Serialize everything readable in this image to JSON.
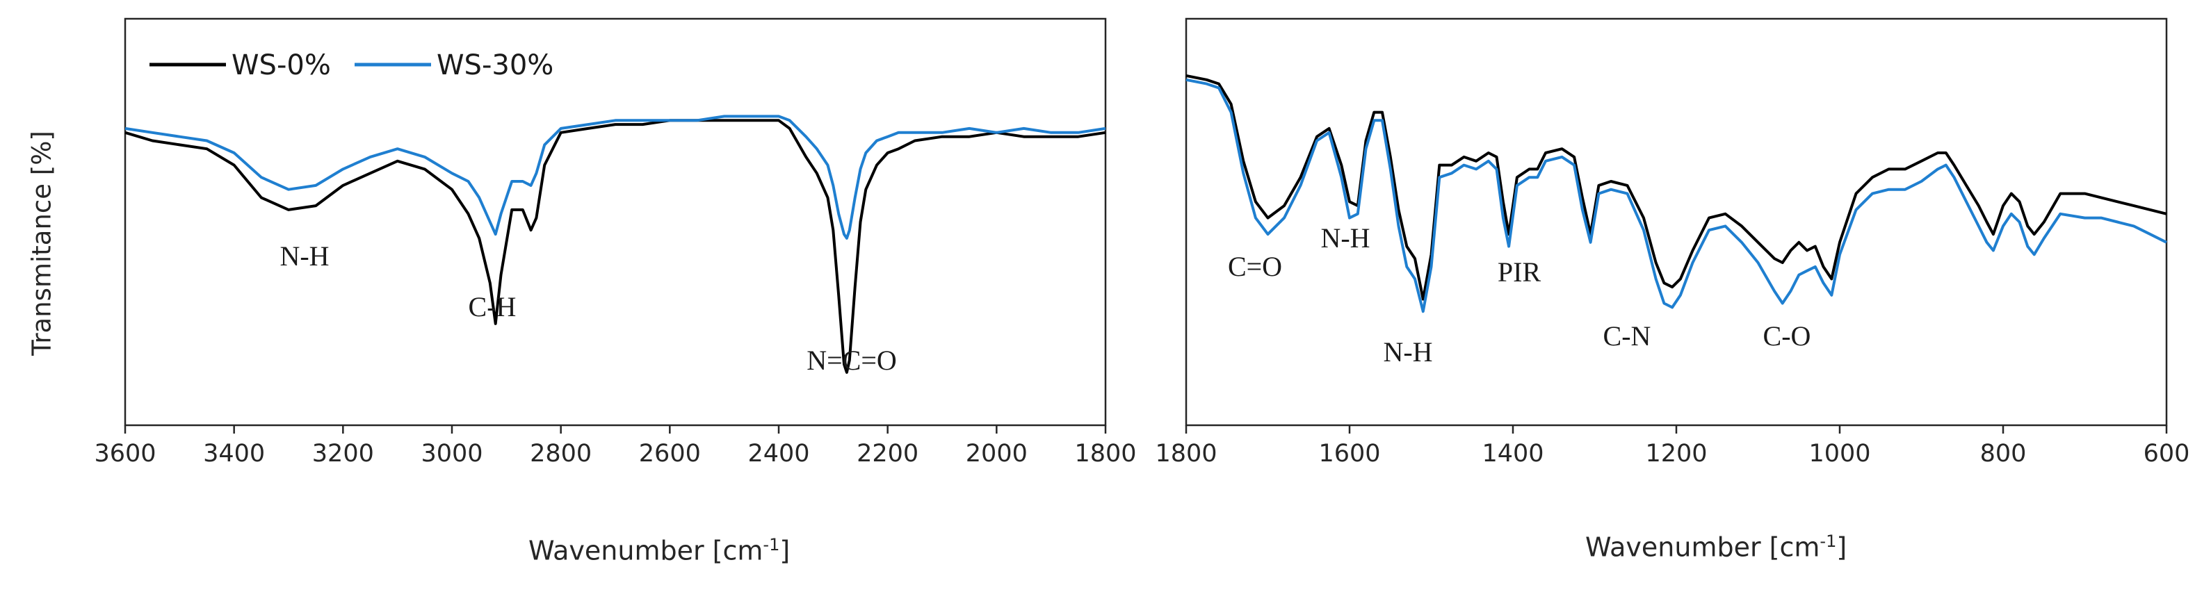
{
  "figure": {
    "ylabel": "Transmitance [%]",
    "colors": {
      "WS-0%": "#000000",
      "WS-30%": "#1f7fd0",
      "axis": "#262626"
    }
  },
  "legend": [
    {
      "label": "WS-0%",
      "color": "#000000"
    },
    {
      "label": "WS-30%",
      "color": "#1f7fd0"
    }
  ],
  "chart_data": [
    {
      "type": "line",
      "xlabel": "Wavenumber [cm-1]",
      "xlabel_base": "Wavenumber [cm",
      "xlabel_sup": "-1",
      "xlabel_tail": "]",
      "xlim": [
        3600,
        1800
      ],
      "x_reversed": true,
      "ylim": [
        0,
        100
      ],
      "y_ticks_shown": false,
      "x_ticks": [
        3600,
        3400,
        3200,
        3000,
        2800,
        2600,
        2400,
        2200,
        2000,
        1800
      ],
      "grid": false,
      "legend_position": "top-left",
      "series": [
        {
          "name": "WS-0%",
          "x": [
            3600,
            3550,
            3500,
            3450,
            3400,
            3350,
            3300,
            3250,
            3200,
            3150,
            3100,
            3050,
            3000,
            2970,
            2950,
            2930,
            2920,
            2910,
            2890,
            2870,
            2855,
            2845,
            2830,
            2800,
            2750,
            2700,
            2650,
            2600,
            2550,
            2500,
            2450,
            2400,
            2380,
            2350,
            2330,
            2310,
            2300,
            2290,
            2280,
            2275,
            2270,
            2260,
            2250,
            2240,
            2220,
            2200,
            2180,
            2150,
            2100,
            2050,
            2000,
            1950,
            1900,
            1850,
            1800
          ],
          "y": [
            72,
            70,
            69,
            68,
            64,
            56,
            53,
            54,
            59,
            62,
            65,
            63,
            58,
            52,
            46,
            35,
            25,
            37,
            53,
            53,
            48,
            51,
            64,
            72,
            73,
            74,
            74,
            75,
            75,
            75,
            75,
            75,
            73,
            66,
            62,
            56,
            48,
            32,
            15,
            13,
            16,
            34,
            50,
            58,
            64,
            67,
            68,
            70,
            71,
            71,
            72,
            71,
            71,
            71,
            72
          ]
        },
        {
          "name": "WS-30%",
          "x": [
            3600,
            3550,
            3500,
            3450,
            3400,
            3350,
            3300,
            3250,
            3200,
            3150,
            3100,
            3050,
            3000,
            2970,
            2950,
            2930,
            2920,
            2910,
            2890,
            2870,
            2855,
            2845,
            2830,
            2800,
            2750,
            2700,
            2650,
            2600,
            2550,
            2500,
            2450,
            2400,
            2380,
            2350,
            2330,
            2310,
            2300,
            2290,
            2280,
            2275,
            2270,
            2260,
            2250,
            2240,
            2220,
            2200,
            2180,
            2150,
            2100,
            2050,
            2000,
            1950,
            1900,
            1850,
            1800
          ],
          "y": [
            73,
            72,
            71,
            70,
            67,
            61,
            58,
            59,
            63,
            66,
            68,
            66,
            62,
            60,
            56,
            50,
            47,
            52,
            60,
            60,
            59,
            62,
            69,
            73,
            74,
            75,
            75,
            75,
            75,
            76,
            76,
            76,
            75,
            71,
            68,
            64,
            59,
            52,
            47,
            46,
            48,
            56,
            63,
            67,
            70,
            71,
            72,
            72,
            72,
            73,
            72,
            73,
            72,
            72,
            73
          ]
        }
      ],
      "annotations": [
        "N-H",
        "C-H",
        "N=C=O"
      ]
    },
    {
      "type": "line",
      "xlabel": "Wavenumber [cm-1]",
      "xlabel_base": "Wavenumber [cm",
      "xlabel_sup": "-1",
      "xlabel_tail": "]",
      "xlim": [
        1800,
        600
      ],
      "x_reversed": true,
      "ylim": [
        0,
        100
      ],
      "y_ticks_shown": false,
      "x_ticks": [
        1800,
        1600,
        1400,
        1200,
        1000,
        800,
        600
      ],
      "grid": false,
      "series": [
        {
          "name": "WS-0%",
          "x": [
            1800,
            1775,
            1760,
            1745,
            1730,
            1715,
            1700,
            1680,
            1660,
            1640,
            1625,
            1610,
            1600,
            1590,
            1580,
            1570,
            1560,
            1550,
            1540,
            1530,
            1520,
            1510,
            1500,
            1490,
            1475,
            1460,
            1445,
            1430,
            1420,
            1412,
            1405,
            1395,
            1380,
            1370,
            1360,
            1340,
            1325,
            1315,
            1305,
            1295,
            1280,
            1260,
            1240,
            1225,
            1215,
            1205,
            1195,
            1180,
            1160,
            1140,
            1120,
            1100,
            1080,
            1070,
            1060,
            1050,
            1040,
            1030,
            1020,
            1010,
            1000,
            980,
            960,
            940,
            920,
            900,
            880,
            870,
            860,
            845,
            830,
            820,
            812,
            800,
            790,
            780,
            770,
            762,
            750,
            730,
            700,
            680,
            660,
            640,
            620,
            600
          ],
          "y": [
            86,
            85,
            84,
            79,
            65,
            55,
            51,
            54,
            61,
            71,
            73,
            64,
            55,
            54,
            70,
            77,
            77,
            66,
            53,
            44,
            41,
            31,
            42,
            64,
            64,
            66,
            65,
            67,
            66,
            55,
            47,
            61,
            63,
            63,
            67,
            68,
            66,
            56,
            47,
            59,
            60,
            59,
            51,
            40,
            35,
            34,
            36,
            43,
            51,
            52,
            49,
            45,
            41,
            40,
            43,
            45,
            43,
            44,
            39,
            36,
            45,
            57,
            61,
            63,
            63,
            65,
            67,
            67,
            64,
            59,
            54,
            50,
            47,
            54,
            57,
            55,
            49,
            47,
            50,
            57,
            57,
            56,
            55,
            54,
            53,
            52
          ]
        },
        {
          "name": "WS-30%",
          "x": [
            1800,
            1775,
            1760,
            1745,
            1730,
            1715,
            1700,
            1680,
            1660,
            1640,
            1625,
            1610,
            1600,
            1590,
            1580,
            1570,
            1560,
            1550,
            1540,
            1530,
            1520,
            1510,
            1500,
            1490,
            1475,
            1460,
            1445,
            1430,
            1420,
            1412,
            1405,
            1395,
            1380,
            1370,
            1360,
            1340,
            1325,
            1315,
            1305,
            1295,
            1280,
            1260,
            1240,
            1225,
            1215,
            1205,
            1195,
            1180,
            1160,
            1140,
            1120,
            1100,
            1080,
            1070,
            1060,
            1050,
            1040,
            1030,
            1020,
            1010,
            1000,
            980,
            960,
            940,
            920,
            900,
            880,
            870,
            860,
            845,
            830,
            820,
            812,
            800,
            790,
            780,
            770,
            762,
            750,
            730,
            700,
            680,
            660,
            640,
            620,
            600
          ],
          "y": [
            85,
            84,
            83,
            77,
            62,
            51,
            47,
            51,
            59,
            70,
            72,
            61,
            51,
            52,
            68,
            75,
            75,
            63,
            49,
            39,
            36,
            28,
            39,
            61,
            62,
            64,
            63,
            65,
            63,
            51,
            44,
            59,
            61,
            61,
            65,
            66,
            64,
            53,
            45,
            57,
            58,
            57,
            48,
            36,
            30,
            29,
            32,
            40,
            48,
            49,
            45,
            40,
            33,
            30,
            33,
            37,
            38,
            39,
            35,
            32,
            42,
            53,
            57,
            58,
            58,
            60,
            63,
            64,
            61,
            55,
            49,
            45,
            43,
            49,
            52,
            50,
            44,
            42,
            46,
            52,
            51,
            51,
            50,
            49,
            47,
            45
          ]
        }
      ],
      "annotations": [
        "C=O",
        "N-H",
        "N-H",
        "PIR",
        "C-N",
        "C-O"
      ]
    }
  ]
}
